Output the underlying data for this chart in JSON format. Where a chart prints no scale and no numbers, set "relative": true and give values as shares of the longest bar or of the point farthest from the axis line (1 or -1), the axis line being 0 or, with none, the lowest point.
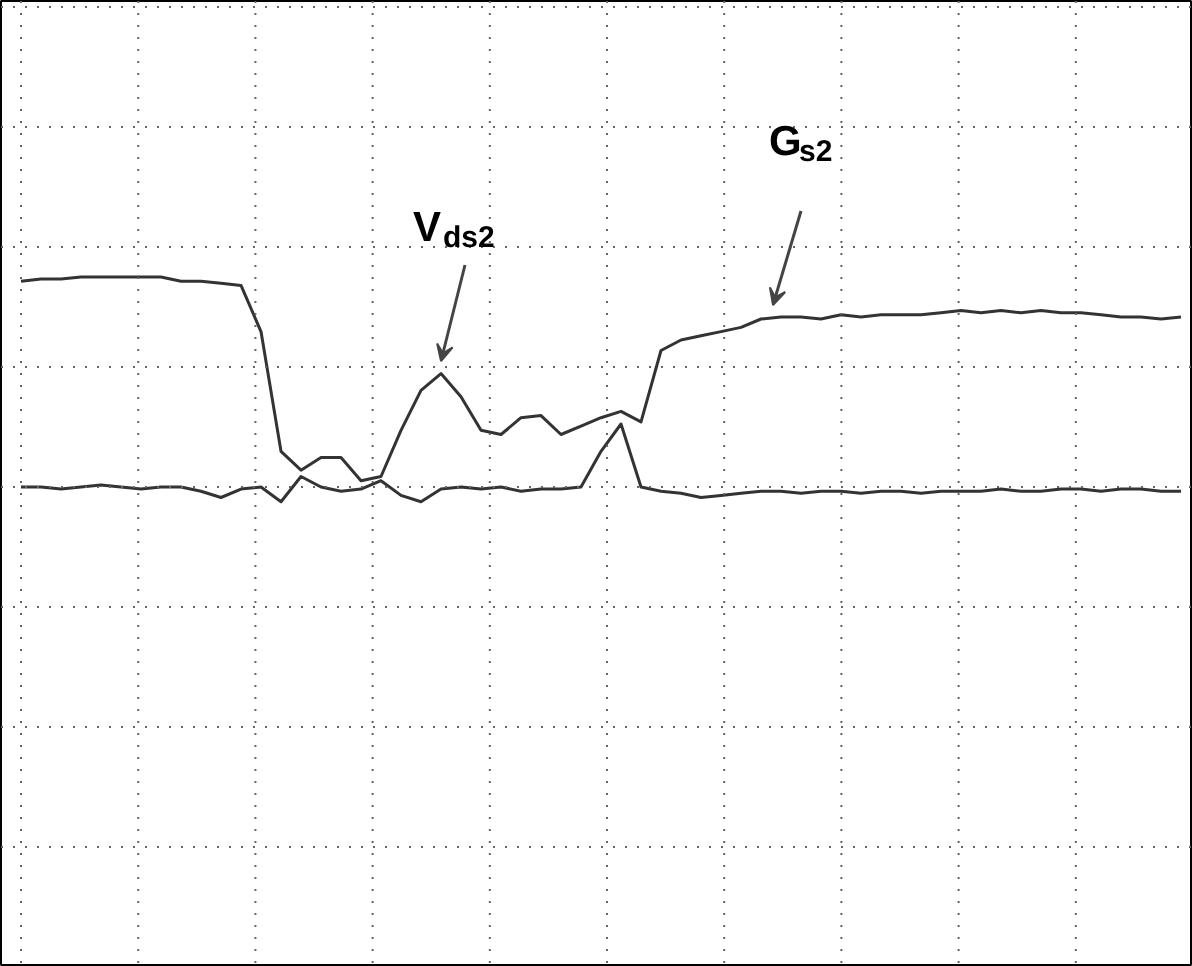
{
  "chart_data": {
    "type": "line",
    "relative": true,
    "grid": true,
    "marker": "none",
    "line_style": "solid",
    "categories": [
      null,
      null,
      null,
      null,
      null,
      null,
      null,
      null,
      null,
      null,
      null,
      null,
      null,
      null,
      null,
      null,
      null,
      null,
      null,
      null,
      null,
      null,
      null,
      null,
      null,
      null,
      null,
      null,
      null,
      null,
      null,
      null,
      null,
      null,
      null,
      null,
      null,
      null,
      null,
      null,
      null,
      null,
      null,
      null,
      null,
      null,
      null,
      null,
      null,
      null,
      null,
      null,
      null,
      null,
      null,
      null,
      null,
      null,
      null
    ],
    "series": [
      {
        "color": "#333333",
        "values": [
          0.98,
          0.99,
          0.99,
          1,
          1,
          1,
          1,
          1,
          0.98,
          0.98,
          0.97,
          0.96,
          0.74,
          0.17,
          0.08,
          0.14,
          0.14,
          0.03,
          0.05,
          0.27,
          0.46,
          0.54,
          0.43,
          0.27,
          0.25,
          0.33,
          0.34,
          0.25,
          0.29,
          0.33,
          0.36,
          0.31,
          0.65,
          0.7,
          0.72,
          0.74,
          0.76,
          0.8,
          0.81,
          0.81,
          0.8,
          0.82,
          0.81,
          0.82,
          0.82,
          0.82,
          0.83,
          0.84,
          0.83,
          0.84,
          0.83,
          0.84,
          0.83,
          0.83,
          0.82,
          0.81,
          0.81,
          0.8,
          0.81
        ]
      },
      {
        "color": "#333333",
        "values": [
          0,
          0,
          -0.01,
          0,
          0.01,
          0,
          -0.01,
          0,
          0,
          -0.02,
          -0.05,
          -0.01,
          0,
          -0.07,
          0.05,
          0,
          -0.02,
          -0.01,
          0.03,
          -0.04,
          -0.07,
          -0.01,
          0,
          -0.01,
          0,
          -0.02,
          -0.01,
          -0.01,
          0,
          0.17,
          0.3,
          0,
          -0.02,
          -0.03,
          -0.05,
          -0.04,
          -0.03,
          -0.02,
          -0.02,
          -0.03,
          -0.02,
          -0.02,
          -0.03,
          -0.02,
          -0.02,
          -0.03,
          -0.02,
          -0.02,
          -0.02,
          -0.01,
          -0.02,
          -0.02,
          -0.01,
          -0.01,
          -0.02,
          -0.01,
          -0.01,
          -0.02,
          -0.02
        ]
      }
    ],
    "annotations": [
      "V$_{ds2}$",
      "G$_{s2}$"
    ]
  }
}
